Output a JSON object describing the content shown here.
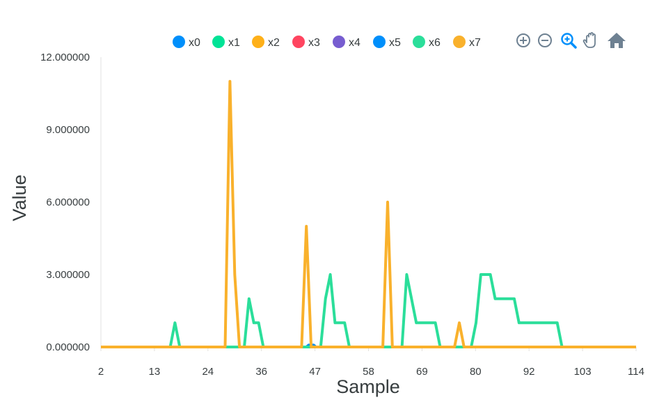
{
  "chart_data": {
    "type": "line",
    "title": "",
    "xlabel": "Sample",
    "ylabel": "Value",
    "ylim": [
      0,
      12
    ],
    "xlim": [
      2,
      114
    ],
    "y_ticks": [
      "0.000000",
      "3.000000",
      "6.000000",
      "9.000000",
      "12.000000"
    ],
    "y_tick_values": [
      0,
      3,
      6,
      9,
      12
    ],
    "x_ticks": [
      "2",
      "13",
      "24",
      "36",
      "47",
      "58",
      "69",
      "80",
      "92",
      "103",
      "114"
    ],
    "x_tick_values": [
      2,
      13.2,
      24.4,
      35.6,
      46.8,
      58,
      69.2,
      80.4,
      91.6,
      102.8,
      114
    ],
    "grid": false,
    "legend_position": "top",
    "series": [
      {
        "name": "x0",
        "color": "#008ffb",
        "points": [
          [
            2,
            0
          ],
          [
            114,
            0
          ]
        ]
      },
      {
        "name": "x1",
        "color": "#00e396",
        "points": [
          [
            2,
            0
          ],
          [
            114,
            0
          ]
        ]
      },
      {
        "name": "x2",
        "color": "#feb019",
        "points": [
          [
            2,
            0
          ],
          [
            114,
            0
          ]
        ]
      },
      {
        "name": "x3",
        "color": "#ff4560",
        "points": [
          [
            2,
            0
          ],
          [
            114,
            0
          ]
        ]
      },
      {
        "name": "x4",
        "color": "#775dd0",
        "points": [
          [
            2,
            0
          ],
          [
            114,
            0
          ]
        ]
      },
      {
        "name": "x5",
        "color": "#008ffb",
        "points": [
          [
            2,
            0
          ],
          [
            45,
            0
          ],
          [
            45.5,
            0.08
          ],
          [
            46.5,
            0.08
          ],
          [
            47,
            0
          ],
          [
            114,
            0
          ]
        ]
      },
      {
        "name": "x6",
        "color": "#2bde9a",
        "points": [
          [
            2,
            0
          ],
          [
            16.5,
            0
          ],
          [
            17.5,
            1.0
          ],
          [
            18.5,
            0
          ],
          [
            32,
            0
          ],
          [
            33,
            2.0
          ],
          [
            34,
            1.0
          ],
          [
            35,
            1.0
          ],
          [
            36,
            0
          ],
          [
            48,
            0
          ],
          [
            49,
            2.0
          ],
          [
            50,
            3.0
          ],
          [
            51,
            1.0
          ],
          [
            53,
            1.0
          ],
          [
            54,
            0
          ],
          [
            65,
            0
          ],
          [
            66,
            3.0
          ],
          [
            68,
            1.0
          ],
          [
            72,
            1.0
          ],
          [
            73,
            0
          ],
          [
            79.5,
            0
          ],
          [
            80.5,
            1.0
          ],
          [
            81.5,
            3.0
          ],
          [
            83.5,
            3.0
          ],
          [
            84.5,
            2.0
          ],
          [
            88.5,
            2.0
          ],
          [
            89.5,
            1.0
          ],
          [
            97.5,
            1.0
          ],
          [
            98.5,
            0
          ],
          [
            114,
            0
          ]
        ]
      },
      {
        "name": "x7",
        "color": "#f9b12c",
        "points": [
          [
            2,
            0
          ],
          [
            28,
            0
          ],
          [
            29,
            11.0
          ],
          [
            30,
            3.0
          ],
          [
            31,
            0
          ],
          [
            44,
            0
          ],
          [
            45,
            5.0
          ],
          [
            46,
            0
          ],
          [
            61,
            0
          ],
          [
            62,
            6.0
          ],
          [
            63,
            0
          ],
          [
            76,
            0
          ],
          [
            77,
            1.0
          ],
          [
            78,
            0
          ],
          [
            114,
            0
          ]
        ]
      }
    ]
  },
  "toolbar": {
    "icons": [
      "zoom-in-icon",
      "zoom-out-icon",
      "selection-zoom-icon",
      "pan-hand-icon",
      "home-reset-icon"
    ],
    "active_color": "#008ffb",
    "inactive_color": "#6e8192"
  }
}
